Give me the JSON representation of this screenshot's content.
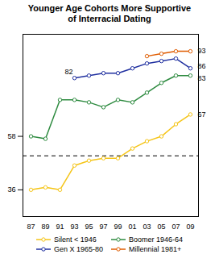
{
  "chart_data": {
    "type": "line",
    "title": "Younger Age Cohorts More Supportive\nof Interracial Dating",
    "categories": [
      "87",
      "89",
      "91",
      "93",
      "95",
      "97",
      "99",
      "01",
      "03",
      "05",
      "07",
      "09"
    ],
    "series": [
      {
        "name": "Silent < 1946",
        "color": "#f5c518",
        "marker": "circle",
        "values": [
          36,
          37,
          36,
          46,
          48,
          49,
          49,
          53,
          56,
          58,
          63,
          67
        ]
      },
      {
        "name": "Boomer 1946-64",
        "color": "#2e8b40",
        "marker": "circle",
        "values": [
          58,
          57,
          73,
          73,
          72,
          70,
          73,
          72,
          76,
          80,
          83,
          83
        ]
      },
      {
        "name": "Gen X 1965-80",
        "color": "#2030a0",
        "marker": "circle",
        "values": [
          null,
          null,
          null,
          82,
          83,
          84,
          84,
          86,
          88,
          89,
          90,
          86
        ]
      },
      {
        "name": "Millennial 1981+",
        "color": "#e05c00",
        "marker": "circle",
        "values": [
          null,
          null,
          null,
          null,
          null,
          null,
          null,
          null,
          91,
          92,
          93,
          93
        ]
      }
    ],
    "hline": {
      "y": 50,
      "color": "#000000",
      "line_style": "dashed"
    },
    "annotations": [
      {
        "text": "82",
        "x": "93",
        "y": 82
      },
      {
        "text": "93",
        "x": "09",
        "y": 93
      },
      {
        "text": "86",
        "x": "09",
        "y": 86
      },
      {
        "text": "83",
        "x": "09",
        "y": 83
      },
      {
        "text": "67",
        "x": "09",
        "y": 67
      }
    ],
    "ylim": [
      25,
      100
    ],
    "yticks": [
      36,
      58
    ],
    "grid": false,
    "legend": "bottom"
  }
}
